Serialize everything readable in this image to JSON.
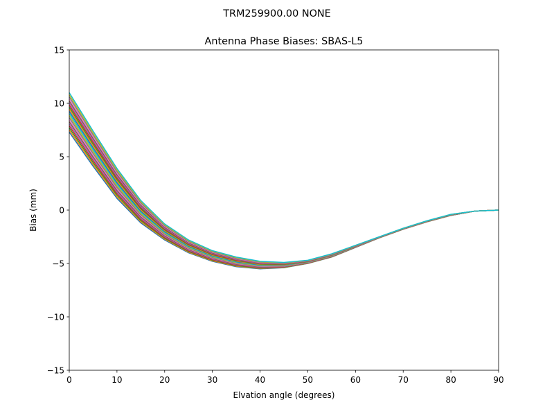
{
  "figure": {
    "suptitle": "TRM259900.00    NONE"
  },
  "chart_data": {
    "type": "line",
    "title": "Antenna Phase Biases: SBAS-L5",
    "xlabel": "Elvation angle (degrees)",
    "ylabel": "Bias (mm)",
    "xlim": [
      0,
      90
    ],
    "ylim": [
      -15,
      15
    ],
    "xticks": [
      0,
      10,
      20,
      30,
      40,
      50,
      60,
      70,
      80,
      90
    ],
    "yticks": [
      -15,
      -10,
      -5,
      0,
      5,
      10,
      15
    ],
    "ytick_labels": [
      "−15",
      "−10",
      "−5",
      "0",
      "5",
      "10",
      "15"
    ],
    "grid": false,
    "legend": "none",
    "x": [
      0,
      5,
      10,
      15,
      20,
      25,
      30,
      35,
      40,
      45,
      50,
      55,
      60,
      65,
      70,
      75,
      80,
      85,
      90
    ],
    "series_envelope": {
      "upper": [
        11.0,
        7.4,
        3.9,
        0.9,
        -1.3,
        -2.8,
        -3.8,
        -4.4,
        -4.8,
        -4.9,
        -4.7,
        -4.1,
        -3.3,
        -2.5,
        -1.7,
        -1.0,
        -0.4,
        -0.1,
        0.0
      ],
      "lower": [
        7.3,
        4.1,
        1.1,
        -1.2,
        -2.8,
        -4.0,
        -4.8,
        -5.3,
        -5.5,
        -5.4,
        -5.0,
        -4.4,
        -3.5,
        -2.6,
        -1.8,
        -1.1,
        -0.5,
        -0.1,
        0.0
      ]
    },
    "series_count": 20,
    "series_colors": [
      "#1f77b4",
      "#ff7f0e",
      "#2ca02c",
      "#d62728",
      "#9467bd",
      "#8c564b",
      "#e377c2",
      "#7f7f7f",
      "#bcbd22",
      "#17becf"
    ]
  }
}
